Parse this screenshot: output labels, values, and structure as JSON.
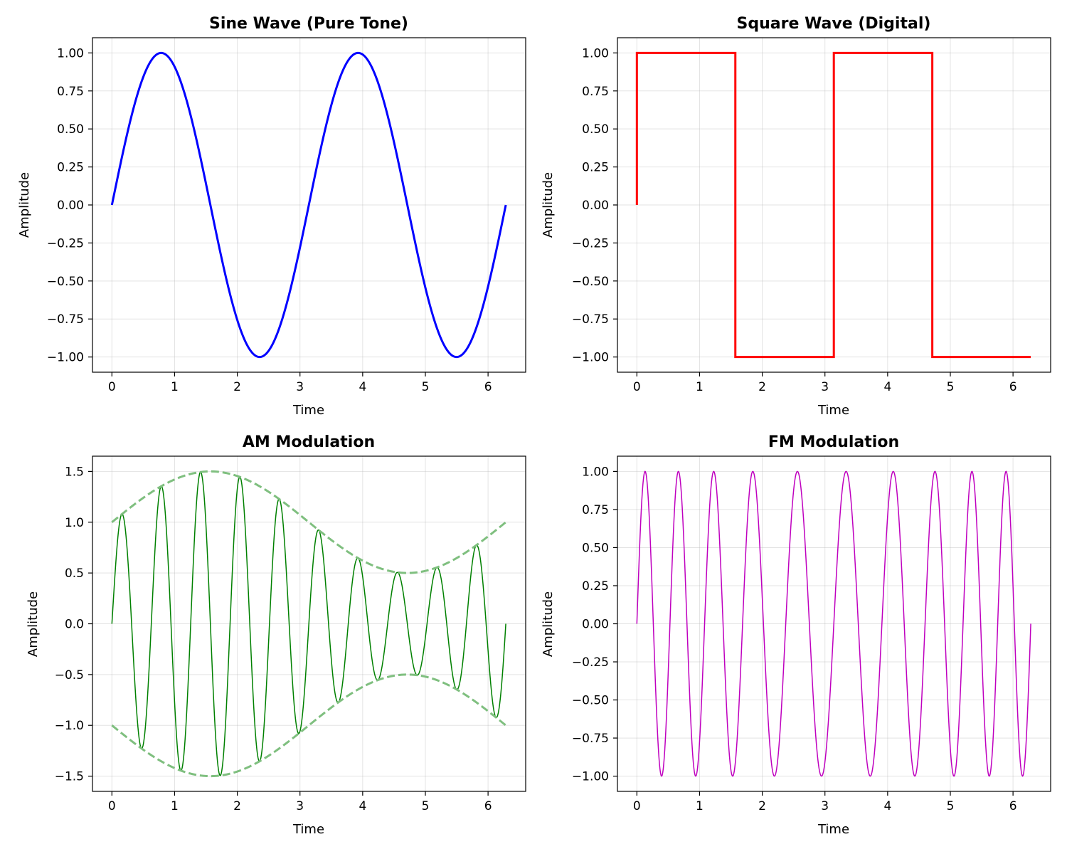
{
  "figure": {
    "background": "#ffffff",
    "grid": true,
    "grid_color": "#b0b0b0"
  },
  "chart_data": [
    {
      "type": "line",
      "title": "Sine Wave (Pure Tone)",
      "xlabel": "Time",
      "ylabel": "Amplitude",
      "xlim": [
        -0.31,
        6.6
      ],
      "ylim": [
        -1.1,
        1.1
      ],
      "xticks": [
        0,
        1,
        2,
        3,
        4,
        5,
        6
      ],
      "yticks": [
        1.0,
        0.75,
        0.5,
        0.25,
        0.0,
        -0.25,
        -0.5,
        -0.75,
        -1.0
      ],
      "ytick_labels": [
        "1.00",
        "0.75",
        "0.50",
        "0.25",
        "0.00",
        "−0.25",
        "−0.50",
        "−0.75",
        "−1.00"
      ],
      "grid": true,
      "series": [
        {
          "function": "sin(2t)",
          "t_range": [
            0,
            6.2832
          ],
          "color": "#0000ff",
          "style": "solid"
        }
      ]
    },
    {
      "type": "line",
      "title": "Square Wave (Digital)",
      "xlabel": "Time",
      "ylabel": "Amplitude",
      "xlim": [
        -0.31,
        6.6
      ],
      "ylim": [
        -1.1,
        1.1
      ],
      "xticks": [
        0,
        1,
        2,
        3,
        4,
        5,
        6
      ],
      "yticks": [
        1.0,
        0.75,
        0.5,
        0.25,
        0.0,
        -0.25,
        -0.5,
        -0.75,
        -1.0
      ],
      "ytick_labels": [
        "1.00",
        "0.75",
        "0.50",
        "0.25",
        "0.00",
        "−0.25",
        "−0.50",
        "−0.75",
        "−1.00"
      ],
      "grid": true,
      "series": [
        {
          "x": [
            0,
            0,
            1.5708,
            1.5708,
            3.1416,
            3.1416,
            4.7124,
            4.7124,
            6.2832
          ],
          "y": [
            0,
            1,
            1,
            -1,
            -1,
            1,
            1,
            -1,
            -1
          ],
          "color": "#ff0000",
          "style": "solid"
        }
      ]
    },
    {
      "type": "line",
      "title": "AM Modulation",
      "xlabel": "Time",
      "ylabel": "Amplitude",
      "xlim": [
        -0.31,
        6.6
      ],
      "ylim": [
        -1.65,
        1.65
      ],
      "xticks": [
        0,
        1,
        2,
        3,
        4,
        5,
        6
      ],
      "yticks": [
        1.5,
        1.0,
        0.5,
        0.0,
        -0.5,
        -1.0,
        -1.5
      ],
      "ytick_labels": [
        "1.5",
        "1.0",
        "0.5",
        "0.0",
        "−0.5",
        "−1.0",
        "−1.5"
      ],
      "grid": true,
      "series": [
        {
          "function": "(1 + 0.5 sin(t)) sin(10t)",
          "t_range": [
            0,
            6.2832
          ],
          "color": "#008000",
          "style": "solid"
        },
        {
          "function": "1 + 0.5 sin(t)",
          "t_range": [
            0,
            6.2832
          ],
          "color": "#7fbf7f",
          "style": "dashed"
        },
        {
          "function": "-(1 + 0.5 sin(t))",
          "t_range": [
            0,
            6.2832
          ],
          "color": "#7fbf7f",
          "style": "dashed"
        }
      ]
    },
    {
      "type": "line",
      "title": "FM Modulation",
      "xlabel": "Time",
      "ylabel": "Amplitude",
      "xlim": [
        -0.31,
        6.6
      ],
      "ylim": [
        -1.1,
        1.1
      ],
      "xticks": [
        0,
        1,
        2,
        3,
        4,
        5,
        6
      ],
      "yticks": [
        1.0,
        0.75,
        0.5,
        0.25,
        0.0,
        -0.25,
        -0.5,
        -0.75,
        -1.0
      ],
      "ytick_labels": [
        "1.00",
        "0.75",
        "0.50",
        "0.25",
        "0.00",
        "−0.25",
        "−0.50",
        "−0.75",
        "−1.00"
      ],
      "grid": true,
      "series": [
        {
          "function": "sin(10t + 2 sin(t))",
          "t_range": [
            0,
            6.2832
          ],
          "color": "#bf00bf",
          "style": "solid"
        }
      ]
    }
  ]
}
